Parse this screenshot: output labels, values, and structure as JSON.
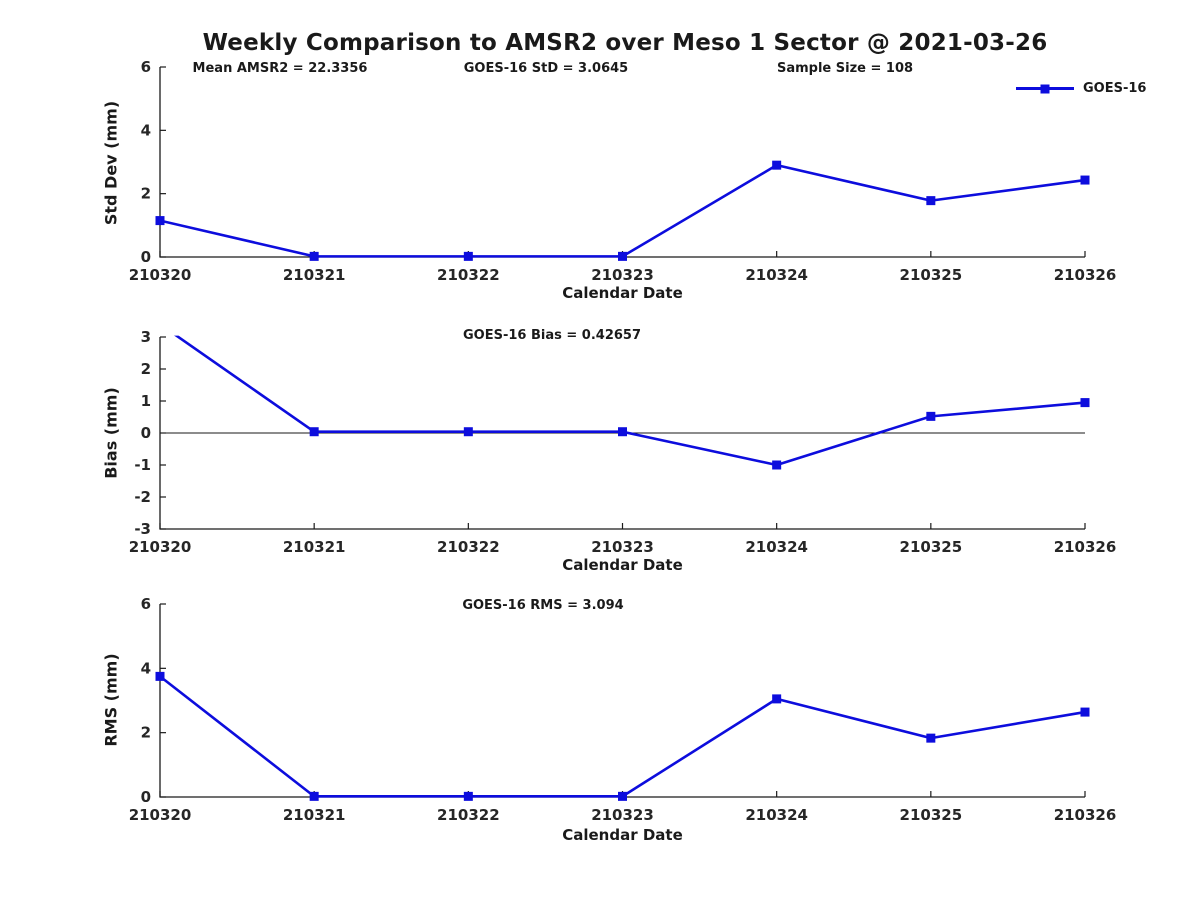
{
  "title": "Weekly Comparison to AMSR2 over Meso 1 Sector @ 2021-03-26",
  "colors": {
    "line": "#0d0ddd",
    "axis": "#1a1a1a",
    "tick_text": "#262626",
    "background": "#ffffff"
  },
  "chart_data": [
    {
      "type": "line",
      "name": "std-dev",
      "categories": [
        "210320",
        "210321",
        "210322",
        "210323",
        "210324",
        "210325",
        "210326"
      ],
      "series": [
        {
          "name": "GOES-16",
          "values": [
            1.15,
            0.02,
            0.02,
            0.02,
            2.9,
            1.78,
            2.43
          ]
        }
      ],
      "xlabel": "Calendar Date",
      "ylabel": "Std Dev (mm)",
      "ylim": [
        0,
        6
      ],
      "yticks": [
        0,
        2,
        4,
        6
      ],
      "grid": false,
      "zero_line": false,
      "annotations": [
        "Mean AMSR2 = 22.3356",
        "GOES-16 StD = 3.0645",
        "Sample Size = 108"
      ],
      "legend": {
        "label": "GOES-16",
        "position": "top-right-outside"
      }
    },
    {
      "type": "line",
      "name": "bias",
      "categories": [
        "210320",
        "210321",
        "210322",
        "210323",
        "210324",
        "210325",
        "210326"
      ],
      "series": [
        {
          "name": "GOES-16",
          "values": [
            3.4,
            0.04,
            0.04,
            0.04,
            -1.0,
            0.52,
            0.95
          ]
        }
      ],
      "xlabel": "Calendar Date",
      "ylabel": "Bias (mm)",
      "ylim": [
        -3,
        3
      ],
      "yticks": [
        -3,
        -2,
        -1,
        0,
        1,
        2,
        3
      ],
      "grid": false,
      "zero_line": true,
      "annotation": "GOES-16 Bias  = 0.42657"
    },
    {
      "type": "line",
      "name": "rms",
      "categories": [
        "210320",
        "210321",
        "210322",
        "210323",
        "210324",
        "210325",
        "210326"
      ],
      "series": [
        {
          "name": "GOES-16",
          "values": [
            3.75,
            0.02,
            0.02,
            0.02,
            3.05,
            1.83,
            2.64
          ]
        }
      ],
      "xlabel": "Calendar Date",
      "ylabel": "RMS (mm)",
      "ylim": [
        0,
        6
      ],
      "yticks": [
        0,
        2,
        4,
        6
      ],
      "grid": false,
      "zero_line": false,
      "annotation": "GOES-16 RMS = 3.094"
    }
  ]
}
